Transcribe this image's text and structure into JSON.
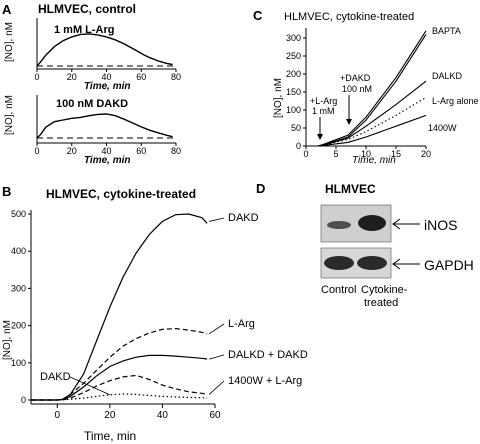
{
  "panels": {
    "A": {
      "letter": "A",
      "title": "HLMVEC, control",
      "top": {
        "label": "1 mM L-Arg",
        "ylabel": "[NO], nM"
      },
      "bottom": {
        "label": "100  nM  DAKD",
        "ylabel": "[NO], nM"
      },
      "xlabel": "Time, min"
    },
    "B": {
      "letter": "B",
      "title": "HLMVEC, cytokine-treated",
      "xlabel": "Time, min",
      "ylabel": "[NO], nM"
    },
    "C": {
      "letter": "C",
      "title": "HLMVEC, cytokine-treated",
      "xlabel": "Time, min",
      "ylabel": "[NO], nM",
      "arrow1": [
        "+L-Arg",
        "1 mM"
      ],
      "arrow2": [
        "+DAKD",
        "100 nM"
      ]
    },
    "D": {
      "letter": "D",
      "title": "HLMVEC",
      "bands": [
        "iNOS",
        "GAPDH"
      ],
      "lanes": [
        "Control",
        "Cytokine-",
        "treated"
      ],
      "band_intensity": {
        "iNOS": [
          0.25,
          0.85
        ],
        "GAPDH": [
          0.8,
          0.8
        ]
      }
    }
  },
  "chart_data": [
    {
      "panel": "A-top",
      "type": "line",
      "xlim": [
        0,
        80
      ],
      "xticks": [
        0,
        20,
        40,
        60,
        80
      ],
      "series": [
        {
          "x": [
            0,
            2,
            5,
            10,
            15,
            20,
            25,
            30,
            35,
            40,
            45,
            50,
            55,
            58,
            60,
            62,
            65,
            70,
            75,
            78
          ],
          "y": [
            0,
            8,
            22,
            40,
            52,
            60,
            65,
            66,
            64,
            60,
            54,
            46,
            36,
            30,
            26,
            22,
            17,
            10,
            5,
            3
          ]
        }
      ]
    },
    {
      "panel": "A-bottom",
      "type": "line",
      "xlim": [
        0,
        80
      ],
      "xticks": [
        0,
        20,
        40,
        60,
        80
      ],
      "series": [
        {
          "x": [
            0,
            2,
            5,
            10,
            15,
            20,
            25,
            30,
            35,
            40,
            45,
            50,
            55,
            60,
            65,
            70,
            75,
            78
          ],
          "y": [
            0,
            8,
            25,
            38,
            42,
            46,
            48,
            52,
            55,
            56,
            52,
            44,
            35,
            26,
            18,
            12,
            6,
            3
          ]
        }
      ]
    },
    {
      "panel": "B",
      "type": "line",
      "xlim": [
        -10,
        60
      ],
      "ylim": [
        0,
        500
      ],
      "xticks": [
        0,
        20,
        40,
        60
      ],
      "yticks": [
        0,
        100,
        200,
        300,
        400,
        500
      ],
      "series": [
        {
          "name": "DAKD",
          "dash": "solid",
          "x": [
            -10,
            -5,
            0,
            2,
            5,
            10,
            15,
            20,
            25,
            30,
            35,
            40,
            45,
            50,
            55,
            57
          ],
          "y": [
            0,
            0,
            0,
            2,
            15,
            70,
            160,
            250,
            330,
            395,
            445,
            480,
            498,
            500,
            490,
            475
          ]
        },
        {
          "name": "L-Arg",
          "dash": "dashed",
          "x": [
            -10,
            -5,
            0,
            2,
            5,
            10,
            15,
            20,
            25,
            30,
            35,
            40,
            45,
            50,
            55,
            57
          ],
          "y": [
            0,
            0,
            0,
            1,
            15,
            45,
            80,
            115,
            145,
            165,
            180,
            190,
            192,
            188,
            182,
            178
          ]
        },
        {
          "name": "DALKD + DAKD",
          "dash": "solid",
          "x": [
            -10,
            -5,
            0,
            2,
            5,
            10,
            15,
            20,
            25,
            30,
            35,
            40,
            45,
            50,
            55,
            57
          ],
          "y": [
            0,
            0,
            0,
            1,
            10,
            35,
            65,
            90,
            105,
            115,
            120,
            120,
            118,
            115,
            112,
            110
          ]
        },
        {
          "name": "1400W + L-Arg",
          "dash": "dashed",
          "x": [
            -10,
            -5,
            0,
            2,
            5,
            10,
            15,
            20,
            25,
            30,
            35,
            40,
            45,
            50,
            55,
            57
          ],
          "y": [
            0,
            0,
            0,
            0,
            5,
            20,
            38,
            52,
            62,
            66,
            55,
            40,
            30,
            22,
            18,
            15
          ]
        },
        {
          "name": "DAKD",
          "dash": "dotted",
          "x": [
            -10,
            -5,
            0,
            5,
            10,
            15,
            20,
            25,
            30,
            35,
            40,
            45,
            50,
            55,
            57
          ],
          "y": [
            0,
            0,
            0,
            2,
            5,
            10,
            14,
            16,
            15,
            12,
            10,
            8,
            7,
            6,
            6
          ]
        }
      ]
    },
    {
      "panel": "C",
      "type": "line",
      "xlim": [
        0,
        20
      ],
      "ylim": [
        0,
        350
      ],
      "xticks": [
        0,
        5,
        10,
        15,
        20
      ],
      "yticks": [
        0,
        50,
        100,
        150,
        200,
        250,
        300
      ],
      "series": [
        {
          "name": "BAPTA",
          "dash": "solid",
          "x": [
            0,
            2,
            3,
            7,
            10,
            15,
            20
          ],
          "y": [
            0,
            0,
            5,
            30,
            80,
            190,
            320
          ]
        },
        {
          "name": "BAPTA",
          "dash": "solid",
          "x": [
            0,
            2,
            3,
            7,
            10,
            15,
            20
          ],
          "y": [
            0,
            0,
            3,
            25,
            72,
            180,
            310
          ]
        },
        {
          "name": "DALKD",
          "dash": "solid",
          "x": [
            0,
            2,
            3,
            7,
            10,
            15,
            20
          ],
          "y": [
            0,
            0,
            3,
            22,
            55,
            115,
            180
          ]
        },
        {
          "name": "L-Arg alone",
          "dash": "dotted",
          "x": [
            0,
            2,
            3,
            7,
            10,
            15,
            20
          ],
          "y": [
            0,
            0,
            3,
            18,
            40,
            85,
            135
          ]
        },
        {
          "name": "1400W",
          "dash": "solid",
          "x": [
            0,
            2,
            3,
            7,
            10,
            15,
            20
          ],
          "y": [
            0,
            0,
            2,
            10,
            25,
            55,
            85
          ]
        },
        {
          "name": "",
          "dash": "dashed",
          "x": [
            0,
            20
          ],
          "y": [
            0,
            0
          ]
        }
      ]
    }
  ]
}
